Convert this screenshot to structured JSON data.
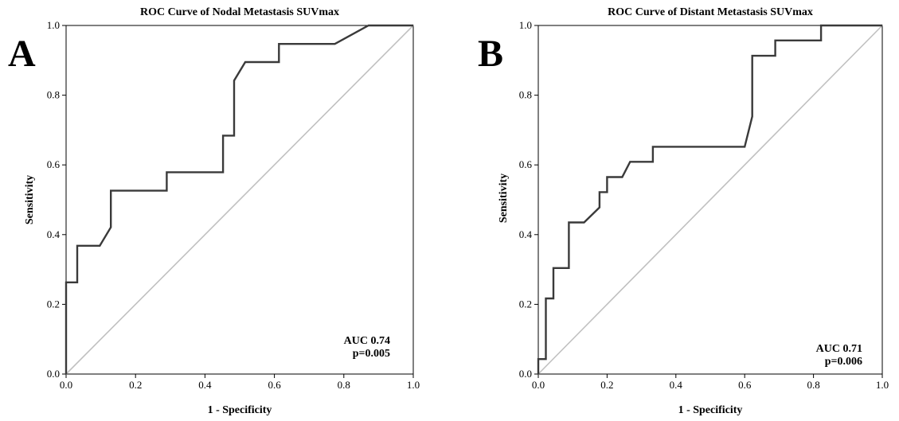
{
  "chart_data": [
    {
      "type": "line",
      "panel_label": "A",
      "title": "ROC Curve of Nodal Metastasis SUVmax",
      "xlabel": "1 - Specificity",
      "ylabel": "Sensitivity",
      "xlim": [
        0,
        1
      ],
      "ylim": [
        0,
        1
      ],
      "xticks": [
        "0.0",
        "0.2",
        "0.4",
        "0.6",
        "0.8",
        "1.0"
      ],
      "yticks": [
        "0.0",
        "0.2",
        "0.4",
        "0.6",
        "0.8",
        "1.0"
      ],
      "grid": false,
      "reference_line": {
        "x": [
          0,
          1
        ],
        "y": [
          0,
          1
        ],
        "color": "#c0c0c0"
      },
      "series": [
        {
          "color": "#3a3a3a",
          "x": [
            0.0,
            0.0,
            0.032,
            0.032,
            0.097,
            0.129,
            0.129,
            0.29,
            0.29,
            0.452,
            0.452,
            0.484,
            0.484,
            0.516,
            0.516,
            0.613,
            0.613,
            0.774,
            0.871,
            1.0
          ],
          "y": [
            0.0,
            0.263,
            0.263,
            0.368,
            0.368,
            0.421,
            0.526,
            0.526,
            0.579,
            0.579,
            0.684,
            0.684,
            0.842,
            0.895,
            0.895,
            0.895,
            0.947,
            0.947,
            1.0,
            1.0
          ]
        }
      ],
      "annotations": [
        "AUC 0.74",
        "p=0.005"
      ]
    },
    {
      "type": "line",
      "panel_label": "B",
      "title": "ROC Curve of Distant Metastasis SUVmax",
      "xlabel": "1 - Specificity",
      "ylabel": "Sensitivity",
      "xlim": [
        0,
        1
      ],
      "ylim": [
        0,
        1
      ],
      "xticks": [
        "0.0",
        "0.2",
        "0.4",
        "0.6",
        "0.8",
        "1.0"
      ],
      "yticks": [
        "0.0",
        "0.2",
        "0.4",
        "0.6",
        "0.8",
        "1.0"
      ],
      "grid": false,
      "reference_line": {
        "x": [
          0,
          1
        ],
        "y": [
          0,
          1
        ],
        "color": "#c0c0c0"
      },
      "series": [
        {
          "color": "#3a3a3a",
          "x": [
            0.0,
            0.0,
            0.022,
            0.022,
            0.044,
            0.044,
            0.089,
            0.089,
            0.133,
            0.178,
            0.178,
            0.2,
            0.2,
            0.244,
            0.267,
            0.267,
            0.333,
            0.333,
            0.6,
            0.622,
            0.622,
            0.689,
            0.689,
            0.822,
            0.822,
            1.0
          ],
          "y": [
            0.0,
            0.043,
            0.043,
            0.217,
            0.217,
            0.304,
            0.304,
            0.435,
            0.435,
            0.478,
            0.522,
            0.522,
            0.565,
            0.565,
            0.609,
            0.609,
            0.609,
            0.652,
            0.652,
            0.739,
            0.913,
            0.913,
            0.957,
            0.957,
            1.0,
            1.0
          ]
        }
      ],
      "annotations": [
        "AUC 0.71",
        "p=0.006"
      ]
    }
  ]
}
